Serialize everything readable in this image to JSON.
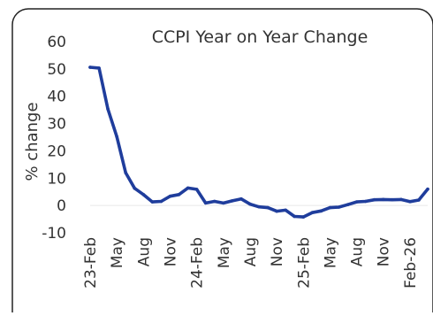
{
  "chart_data": {
    "type": "line",
    "title": "CCPI Year on Year  Change",
    "xlabel": "",
    "ylabel": "% change",
    "ylim": [
      -10,
      60
    ],
    "yticks": [
      60,
      50,
      40,
      30,
      20,
      10,
      0,
      -10
    ],
    "grid": false,
    "legend": "none",
    "line_color": "#1f3d9c",
    "x": [
      "2023-02",
      "2023-03",
      "2023-04",
      "2023-05",
      "2023-06",
      "2023-07",
      "2023-08",
      "2023-09",
      "2023-10",
      "2023-11",
      "2023-12",
      "2024-01",
      "2024-02",
      "2024-03",
      "2024-04",
      "2024-05",
      "2024-06",
      "2024-07",
      "2024-08",
      "2024-09",
      "2024-10",
      "2024-11",
      "2024-12",
      "2025-01",
      "2025-02",
      "2025-03",
      "2025-04",
      "2025-05",
      "2025-06",
      "2025-07",
      "2025-08",
      "2025-09",
      "2025-10",
      "2025-11",
      "2025-12",
      "2026-01",
      "2026-02",
      "2026-03",
      "2026-04"
    ],
    "xtick_labels": [
      {
        "x": "2023-02",
        "label": "23-Feb"
      },
      {
        "x": "2023-05",
        "label": "May"
      },
      {
        "x": "2023-08",
        "label": "Aug"
      },
      {
        "x": "2023-11",
        "label": "Nov"
      },
      {
        "x": "2024-02",
        "label": "24-Feb"
      },
      {
        "x": "2024-05",
        "label": "May"
      },
      {
        "x": "2024-08",
        "label": "Aug"
      },
      {
        "x": "2024-11",
        "label": "Nov"
      },
      {
        "x": "2025-02",
        "label": "25-Feb"
      },
      {
        "x": "2025-05",
        "label": "May"
      },
      {
        "x": "2025-08",
        "label": "Aug"
      },
      {
        "x": "2025-11",
        "label": "Nov"
      },
      {
        "x": "2026-02",
        "label": "Feb-26"
      }
    ],
    "series": [
      {
        "values": [
          50.6,
          50.3,
          35.3,
          25.2,
          12.0,
          6.3,
          4.0,
          1.3,
          1.5,
          3.4,
          4.0,
          6.4,
          5.9,
          0.9,
          1.5,
          0.9,
          1.7,
          2.4,
          0.5,
          -0.5,
          -0.8,
          -2.1,
          -1.7,
          -4.0,
          -4.2,
          -2.6,
          -2.0,
          -0.8,
          -0.6,
          0.3,
          1.3,
          1.5,
          2.1,
          2.2,
          2.1,
          2.2,
          1.4,
          2.0,
          6.0
        ]
      }
    ]
  }
}
